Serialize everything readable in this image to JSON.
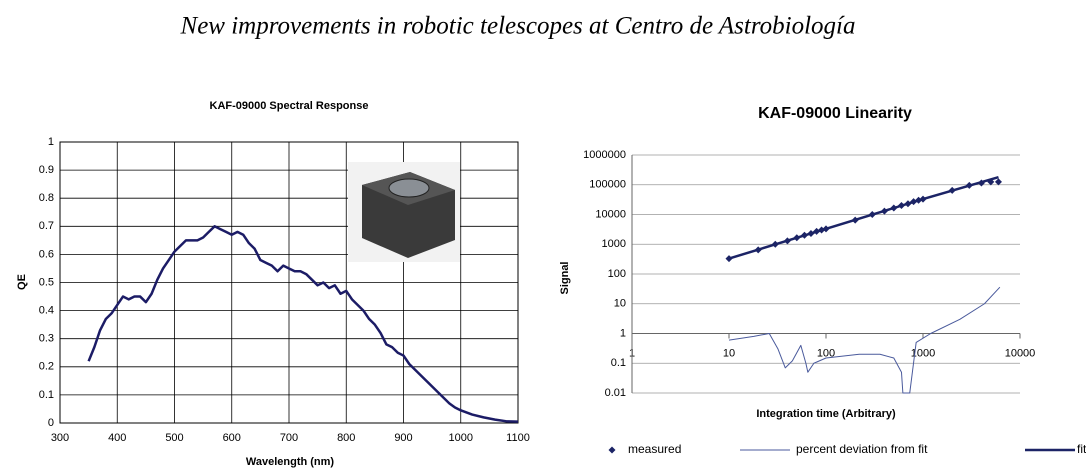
{
  "header": {
    "title": "New improvements in robotic telescopes at Centro de Astrobiología"
  },
  "chart_data": [
    {
      "type": "line",
      "title": "KAF-09000 Spectral Response",
      "x_label": "Wavelength (nm)",
      "y_label": "QE",
      "color": "#1c1c66",
      "grid": true,
      "x": [
        350,
        360,
        370,
        380,
        390,
        400,
        410,
        420,
        430,
        440,
        450,
        460,
        470,
        480,
        490,
        500,
        510,
        520,
        530,
        540,
        550,
        560,
        570,
        580,
        590,
        600,
        610,
        620,
        630,
        640,
        650,
        660,
        670,
        680,
        690,
        700,
        710,
        720,
        730,
        740,
        750,
        760,
        770,
        780,
        790,
        800,
        810,
        820,
        830,
        840,
        850,
        860,
        870,
        880,
        890,
        900,
        910,
        920,
        930,
        940,
        950,
        960,
        970,
        980,
        990,
        1000,
        1020,
        1040,
        1060,
        1080,
        1100
      ],
      "values": [
        0.22,
        0.27,
        0.33,
        0.37,
        0.39,
        0.42,
        0.45,
        0.44,
        0.45,
        0.45,
        0.43,
        0.46,
        0.51,
        0.55,
        0.58,
        0.61,
        0.63,
        0.65,
        0.65,
        0.65,
        0.66,
        0.68,
        0.7,
        0.69,
        0.68,
        0.67,
        0.68,
        0.67,
        0.64,
        0.62,
        0.58,
        0.57,
        0.56,
        0.54,
        0.56,
        0.55,
        0.54,
        0.54,
        0.53,
        0.51,
        0.49,
        0.5,
        0.48,
        0.49,
        0.46,
        0.47,
        0.44,
        0.42,
        0.4,
        0.37,
        0.35,
        0.32,
        0.28,
        0.27,
        0.25,
        0.24,
        0.21,
        0.19,
        0.17,
        0.15,
        0.13,
        0.11,
        0.09,
        0.07,
        0.055,
        0.045,
        0.03,
        0.02,
        0.012,
        0.006,
        0.005
      ],
      "xlim": [
        300,
        1100
      ],
      "xticks": [
        300,
        400,
        500,
        600,
        700,
        800,
        900,
        1000,
        1100
      ],
      "ylim": [
        0,
        1
      ],
      "yticks": [
        0,
        0.1,
        0.2,
        0.3,
        0.4,
        0.5,
        0.6,
        0.7,
        0.8,
        0.9,
        1
      ]
    },
    {
      "type": "line",
      "title": "KAF-09000 Linearity",
      "x_label": "Integration time (Arbitrary)",
      "y_label": "Signal",
      "xscale": "log",
      "yscale": "log",
      "grid": true,
      "xlim": [
        1,
        10000
      ],
      "xticks": [
        1,
        10,
        100,
        1000,
        10000
      ],
      "ylim": [
        0.01,
        1000000
      ],
      "yticks": [
        1000000,
        100000,
        10000,
        1000,
        100,
        10,
        1,
        0.1,
        0.01
      ],
      "series": [
        {
          "name": "measured",
          "color": "#1c2466",
          "mode": "markers",
          "x": [
            10,
            20,
            30,
            40,
            50,
            60,
            70,
            80,
            90,
            100,
            200,
            300,
            400,
            500,
            600,
            700,
            800,
            900,
            1000,
            2000,
            3000,
            4000,
            5000,
            6000
          ],
          "values": [
            330,
            650,
            1000,
            1300,
            1650,
            2000,
            2300,
            2700,
            3000,
            3300,
            6500,
            10000,
            13000,
            16500,
            20000,
            23000,
            27000,
            30000,
            33000,
            65000,
            95000,
            115000,
            125000,
            125000
          ]
        },
        {
          "name": "percent deviation from fit",
          "color": "#4a5a9c",
          "mode": "line",
          "width": 1,
          "x": [
            10,
            18,
            26,
            32,
            38,
            45,
            55,
            62,
            65,
            75,
            100,
            220,
            360,
            500,
            600,
            620,
            730,
            850,
            1200,
            2400,
            4300,
            6200
          ],
          "values": [
            0.6,
            0.8,
            1,
            0.3,
            0.07,
            0.12,
            0.4,
            0.1,
            0.05,
            0.1,
            0.15,
            0.2,
            0.2,
            0.15,
            0.05,
            0.01,
            0.01,
            0.5,
            1,
            3,
            10,
            36
          ]
        },
        {
          "name": "fit",
          "color": "#1c2466",
          "mode": "line",
          "width": 2.5,
          "x": [
            10,
            100,
            1000,
            6000
          ],
          "values": [
            330,
            3300,
            33000,
            180000
          ]
        }
      ]
    }
  ]
}
